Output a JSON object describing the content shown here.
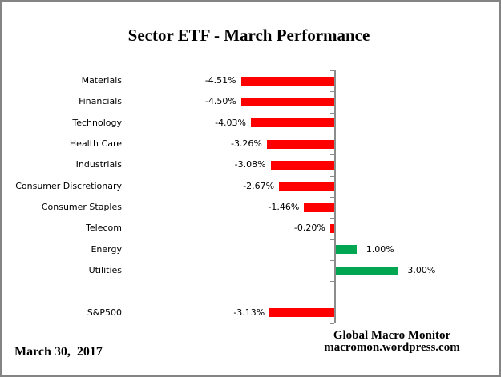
{
  "chart_data": {
    "type": "bar",
    "orientation": "horizontal",
    "title": "Sector ETF - March Performance",
    "unit": "%",
    "categories": [
      "Materials",
      "Financials",
      "Technology",
      "Health Care",
      "Industrials",
      "Consumer Discretionary",
      "Consumer Staples",
      "Telecom",
      "Energy",
      "Utilities",
      "",
      "S&P500"
    ],
    "values": [
      -4.51,
      -4.5,
      -4.03,
      -3.26,
      -3.08,
      -2.67,
      -1.46,
      -0.2,
      1.0,
      3.0,
      null,
      -3.13
    ],
    "value_labels": [
      "-4.51%",
      "-4.50%",
      "-4.03%",
      "-3.26%",
      "-3.08%",
      "-2.67%",
      "-1.46%",
      "-0.20%",
      "1.00%",
      "3.00%",
      "",
      "-3.13%"
    ],
    "xlim": [
      -5,
      3.5
    ],
    "gridlines": false,
    "legend": "none",
    "value_label_position": "outside-end",
    "colors": {
      "negative": "#FF0000",
      "positive": "#00A651",
      "axis": "#8C8C8C"
    }
  },
  "footer": {
    "date": "March 30,  2017",
    "attribution_line1": "Global Macro Monitor",
    "attribution_line2": "macromon.wordpress.com"
  }
}
